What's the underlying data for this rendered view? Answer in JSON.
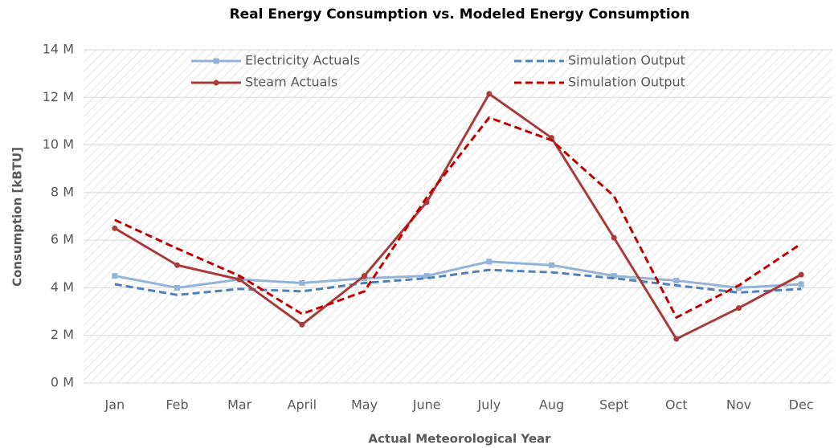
{
  "chart_data": {
    "type": "line",
    "title": "Real Energy Consumption vs. Modeled Energy Consumption",
    "x_label": "Actual Meteorological  Year",
    "y_label": "Consumption [kBTU]",
    "categories": [
      "Jan",
      "Feb",
      "Mar",
      "April",
      "May",
      "June",
      "July",
      "Aug",
      "Sept",
      "Oct",
      "Nov",
      "Dec"
    ],
    "series": [
      {
        "name": "Electricity Actuals",
        "color": "#95b3d7",
        "dashed": false,
        "marker": "square",
        "values": [
          4.5,
          4.0,
          4.35,
          4.2,
          4.4,
          4.5,
          5.1,
          4.95,
          4.5,
          4.3,
          4.0,
          4.15
        ]
      },
      {
        "name": "Simulation Output",
        "color": "#4f81bd",
        "dashed": true,
        "marker": "none",
        "values": [
          4.15,
          3.7,
          3.95,
          3.85,
          4.2,
          4.4,
          4.75,
          4.65,
          4.4,
          4.1,
          3.8,
          3.95
        ]
      },
      {
        "name": "Steam Actuals",
        "color": "#a83b3b",
        "dashed": false,
        "marker": "circle",
        "values": [
          6.5,
          4.95,
          4.35,
          2.45,
          4.5,
          7.6,
          12.15,
          10.3,
          6.1,
          1.85,
          3.15,
          4.55
        ]
      },
      {
        "name": "Simulation Output",
        "color": "#c00000",
        "dashed": true,
        "marker": "none",
        "values": [
          6.85,
          5.65,
          4.5,
          2.9,
          3.85,
          7.8,
          11.15,
          10.2,
          7.85,
          2.75,
          4.1,
          5.85
        ]
      }
    ],
    "ylim": [
      0,
      14
    ],
    "yticks": [
      {
        "value": 0,
        "label": "0 M"
      },
      {
        "value": 2,
        "label": "2 M"
      },
      {
        "value": 4,
        "label": "4 M"
      },
      {
        "value": 6,
        "label": "6 M"
      },
      {
        "value": 8,
        "label": "8 M"
      },
      {
        "value": 10,
        "label": "10 M"
      },
      {
        "value": 12,
        "label": "12 M"
      },
      {
        "value": 14,
        "label": "14 M"
      }
    ],
    "grid": true,
    "legend": "top"
  }
}
